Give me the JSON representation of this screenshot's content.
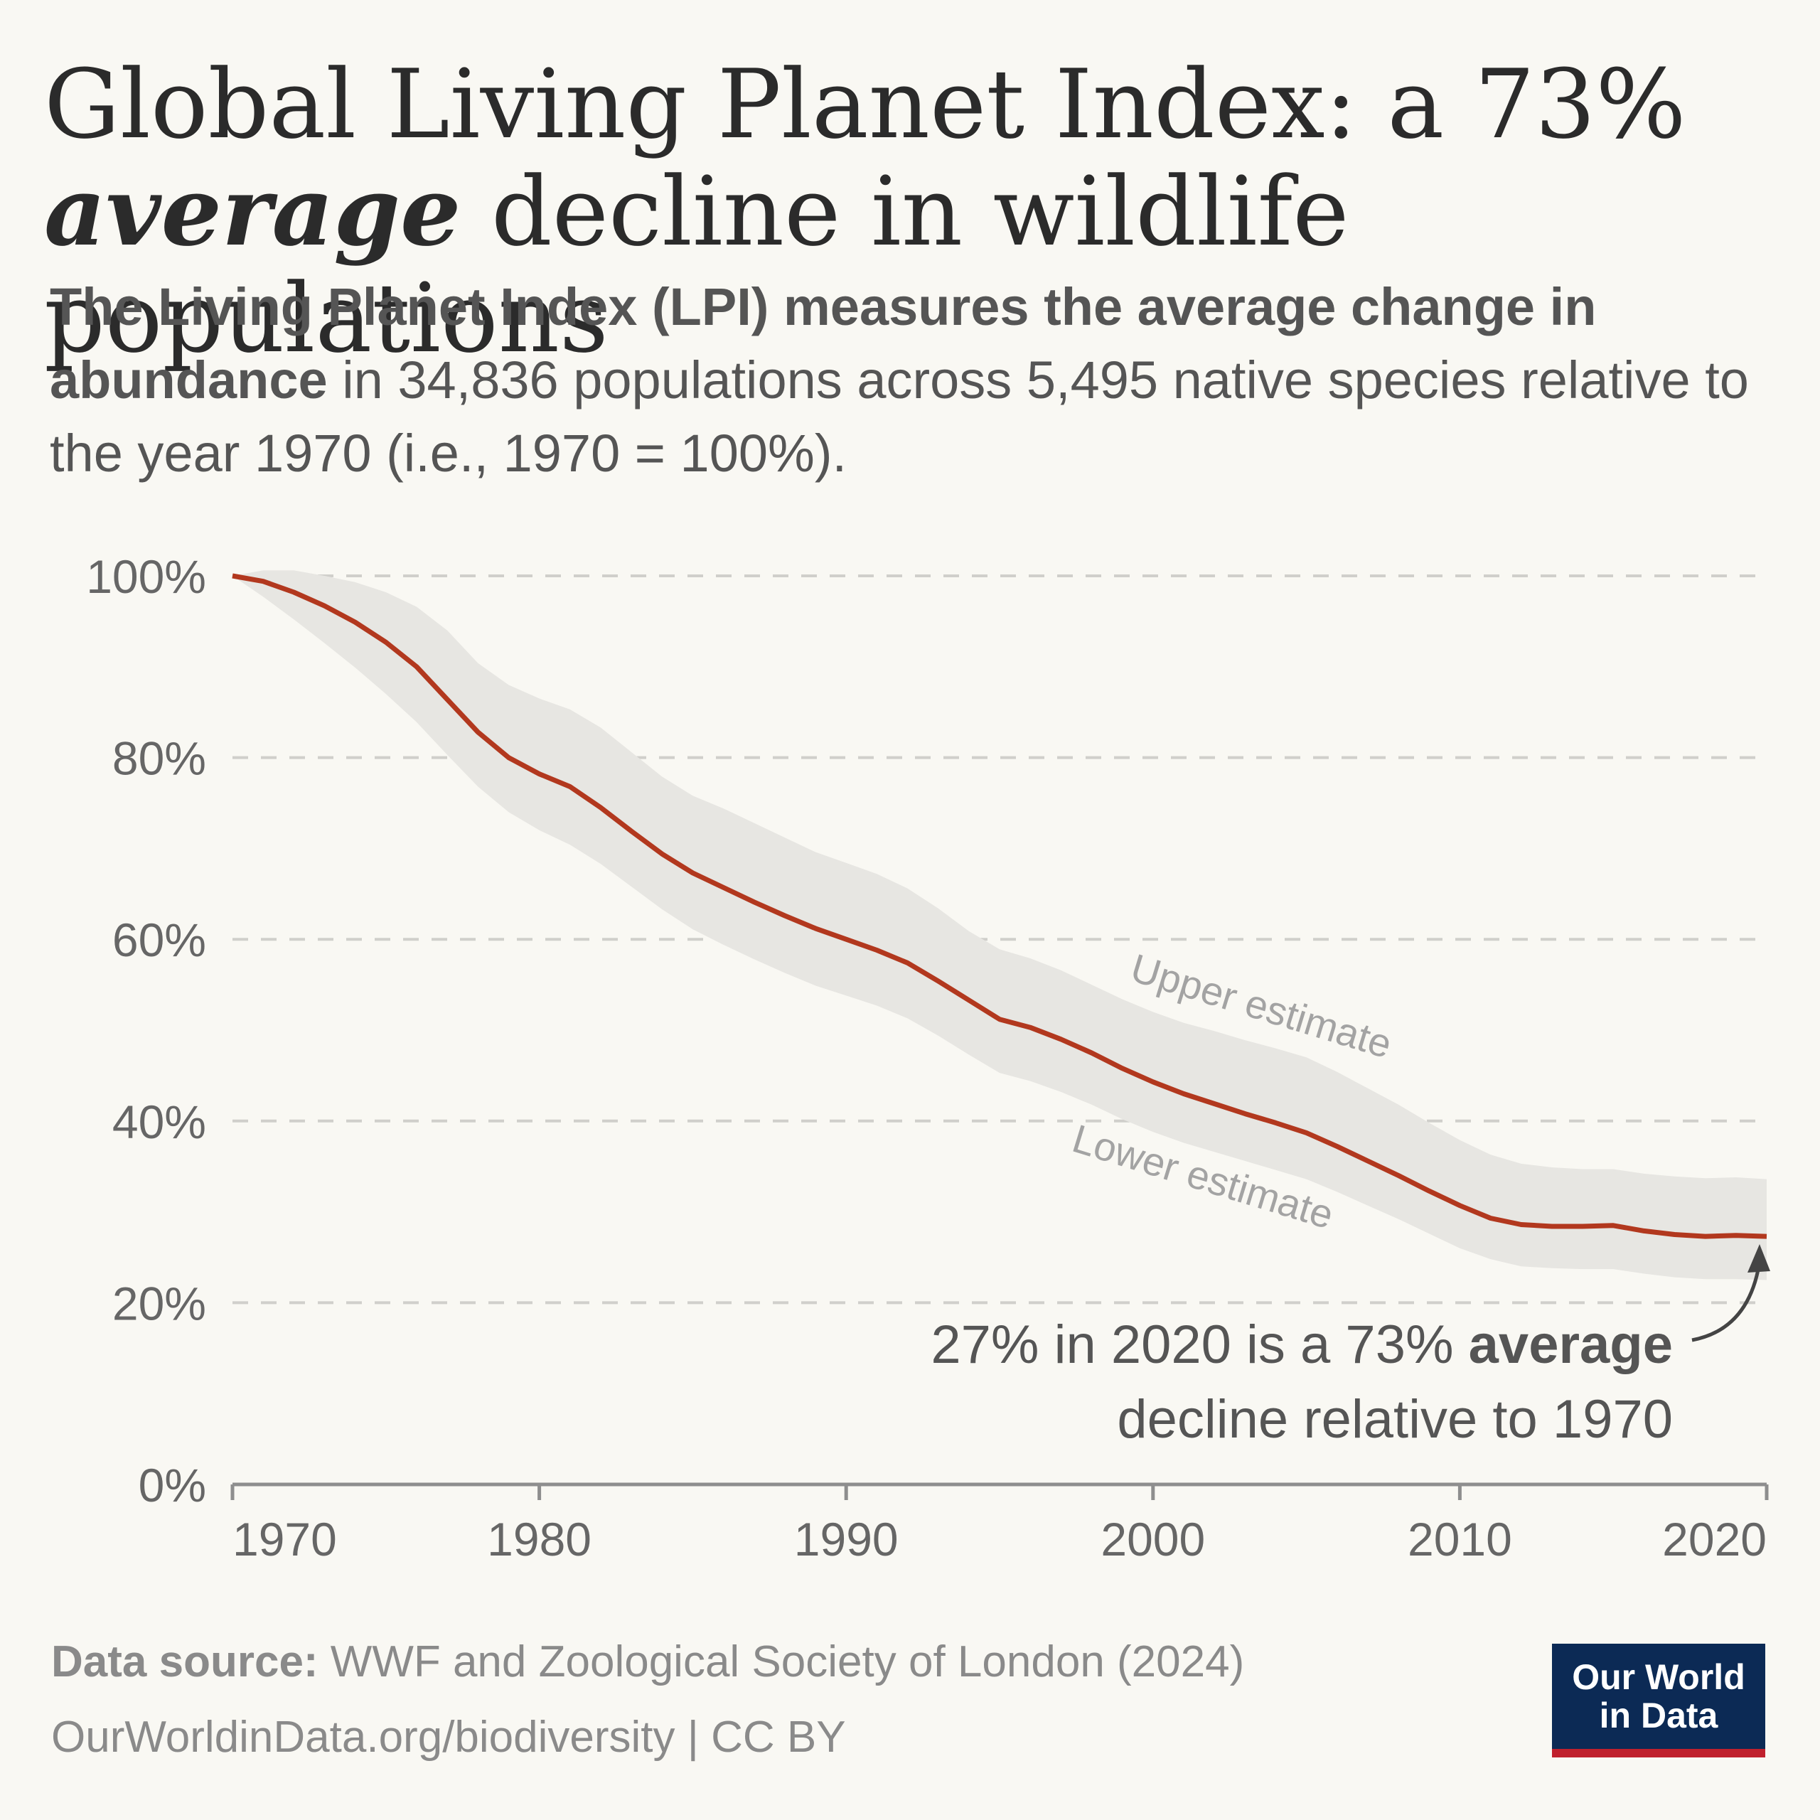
{
  "title": {
    "line1": "Global Living Planet Index: a 73%",
    "italic": "average",
    "line2_rest": " decline in wildlife populations"
  },
  "subtitle": {
    "bold1": "The Living Planet Index (LPI) measures the average change in abundance",
    "rest": " in 34,836 populations across 5,495 native species relative to the year 1970 (i.e., 1970 = 100%)."
  },
  "chart_data": {
    "type": "line",
    "x": [
      1970,
      1971,
      1972,
      1973,
      1974,
      1975,
      1976,
      1977,
      1978,
      1979,
      1980,
      1981,
      1982,
      1983,
      1984,
      1985,
      1986,
      1987,
      1988,
      1989,
      1990,
      1991,
      1992,
      1993,
      1994,
      1995,
      1996,
      1997,
      1998,
      1999,
      2000,
      2001,
      2002,
      2003,
      2004,
      2005,
      2006,
      2007,
      2008,
      2009,
      2010,
      2011,
      2012,
      2013,
      2014,
      2015,
      2016,
      2017,
      2018,
      2019,
      2020
    ],
    "series": [
      {
        "values": [
          100,
          99.4,
          98.2,
          96.7,
          94.9,
          92.7,
          90.0,
          86.4,
          82.8,
          80.0,
          78.2,
          76.8,
          74.5,
          71.9,
          69.4,
          67.3,
          65.7,
          64.1,
          62.6,
          61.2,
          60.0,
          58.8,
          57.4,
          55.4,
          53.3,
          51.2,
          50.3,
          49.0,
          47.5,
          45.8,
          44.3,
          43.0,
          41.9,
          40.8,
          39.8,
          38.7,
          37.2,
          35.6,
          34.0,
          32.3,
          30.7,
          29.3,
          28.6,
          28.4,
          28.4,
          28.5,
          27.9,
          27.5,
          27.3,
          27.4,
          27.3
        ]
      }
    ],
    "band": {
      "upper": [
        100,
        100.6,
        100.6,
        100.0,
        99.3,
        98.2,
        96.6,
        94.0,
        90.4,
        88.0,
        86.5,
        85.3,
        83.3,
        80.6,
        77.9,
        75.8,
        74.4,
        72.8,
        71.2,
        69.6,
        68.4,
        67.2,
        65.6,
        63.4,
        60.9,
        58.9,
        57.9,
        56.6,
        55.0,
        53.4,
        52.0,
        50.8,
        49.9,
        48.9,
        48.0,
        47.0,
        45.4,
        43.6,
        41.8,
        39.8,
        37.9,
        36.3,
        35.3,
        34.9,
        34.7,
        34.7,
        34.2,
        33.9,
        33.7,
        33.8,
        33.6
      ],
      "lower": [
        100,
        97.7,
        95.2,
        92.6,
        89.9,
        87.0,
        83.9,
        80.3,
        76.8,
        74.0,
        72.0,
        70.4,
        68.3,
        65.8,
        63.3,
        61.1,
        59.4,
        57.8,
        56.3,
        54.9,
        53.8,
        52.7,
        51.3,
        49.4,
        47.3,
        45.3,
        44.4,
        43.2,
        41.8,
        40.2,
        38.8,
        37.6,
        36.6,
        35.6,
        34.6,
        33.6,
        32.2,
        30.7,
        29.2,
        27.6,
        26.0,
        24.8,
        24.0,
        23.8,
        23.7,
        23.7,
        23.2,
        22.8,
        22.6,
        22.6,
        22.5
      ]
    },
    "ylim": [
      0,
      100
    ],
    "xlim": [
      1970,
      2020
    ],
    "yticks": [
      "0%",
      "20%",
      "40%",
      "60%",
      "80%",
      "100%"
    ],
    "xticks": [
      "1970",
      "1980",
      "1990",
      "2000",
      "2010",
      "2020"
    ],
    "grid": true,
    "labels": {
      "upper": "Upper estimate",
      "lower": "Lower estimate"
    },
    "annotation": {
      "text1": "27% in 2020 is a 73% ",
      "bold": "average",
      "text2": "decline relative to 1970"
    },
    "colors": {
      "line": "#b2381e",
      "band": "#e7e6e2",
      "grid": "#d0cfcb"
    }
  },
  "footer": {
    "source_label": "Data source:",
    "source": " WWF and Zoological Society of London (2024)",
    "url": "OurWorldinData.org/biodiversity | CC BY"
  },
  "logo": {
    "line1": "Our World",
    "line2": "in Data"
  }
}
